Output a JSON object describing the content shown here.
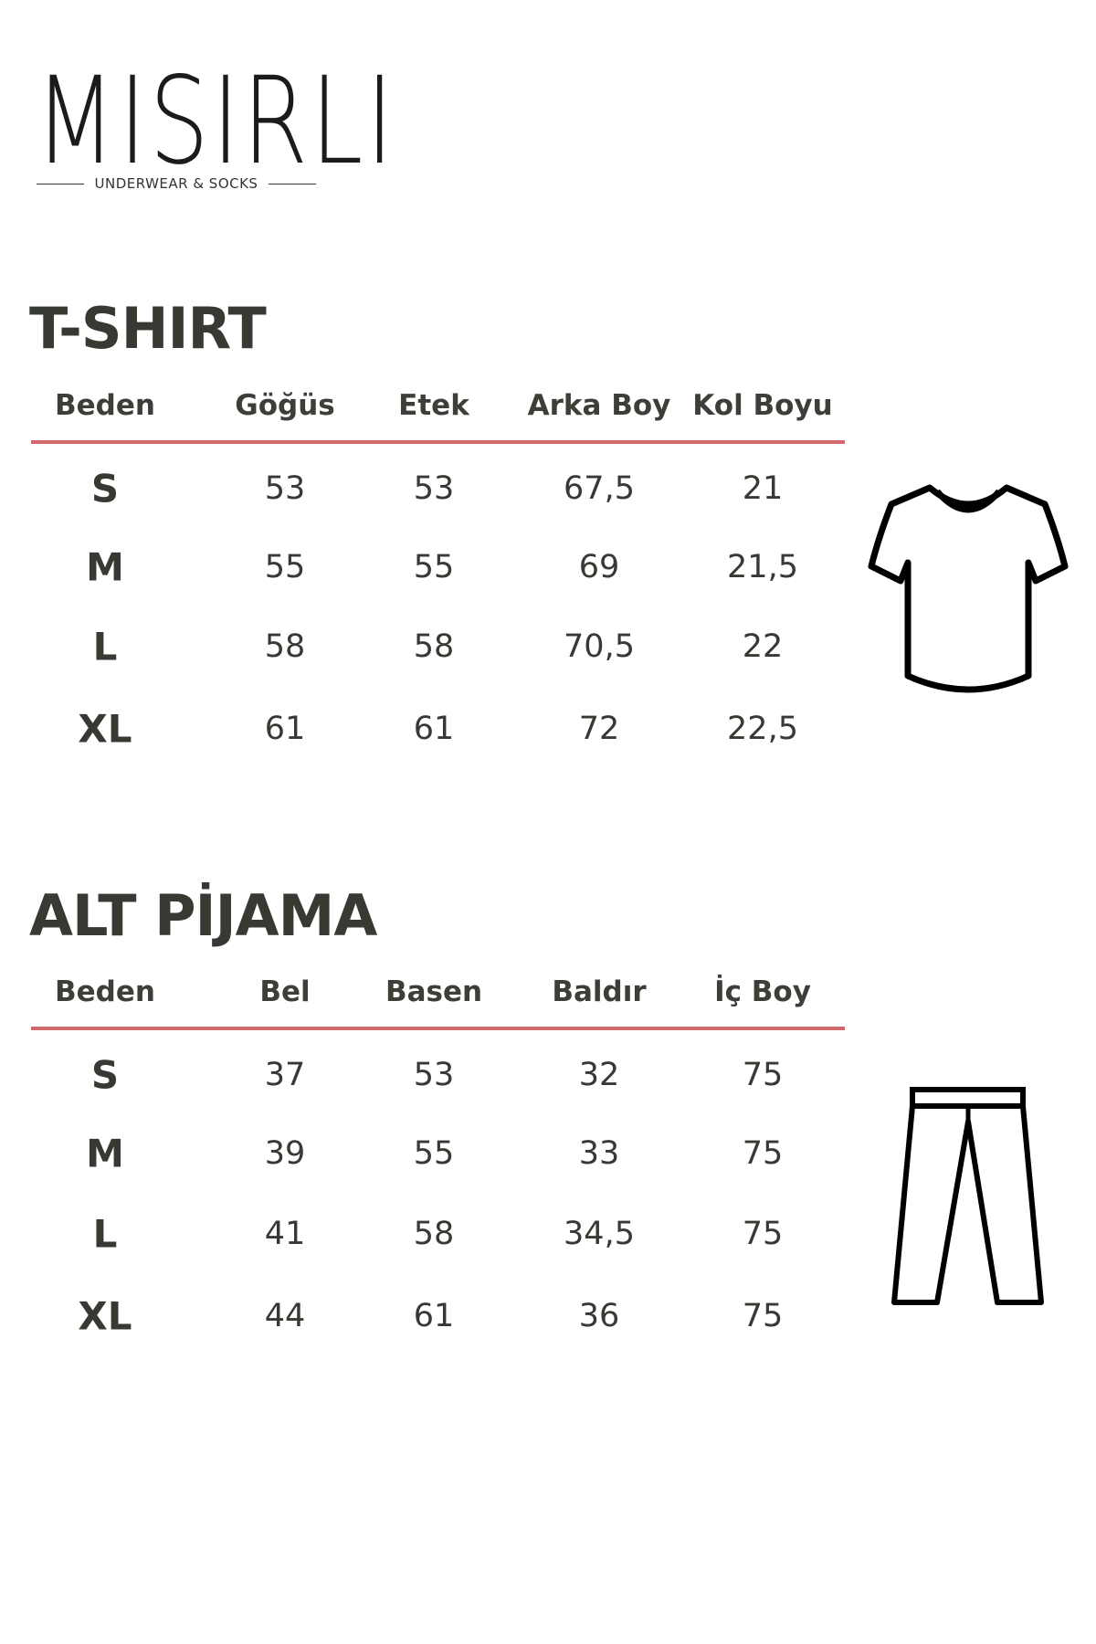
{
  "brand": {
    "name": "MISIRLI",
    "tagline": "UNDERWEAR & SOCKS"
  },
  "accent_color": "#d06a6a",
  "tables": [
    {
      "title": "T-SHIRT",
      "icon": "tshirt-icon",
      "headers": [
        "Beden",
        "Göğüs",
        "Etek",
        "Arka Boy",
        "Kol Boyu"
      ],
      "rows": [
        [
          "S",
          "53",
          "53",
          "67,5",
          "21"
        ],
        [
          "M",
          "55",
          "55",
          "69",
          "21,5"
        ],
        [
          "L",
          "58",
          "58",
          "70,5",
          "22"
        ],
        [
          "XL",
          "61",
          "61",
          "72",
          "22,5"
        ]
      ]
    },
    {
      "title": "ALT PİJAMA",
      "icon": "pants-icon",
      "headers": [
        "Beden",
        "Bel",
        "Basen",
        "Baldır",
        "İç Boy"
      ],
      "rows": [
        [
          "S",
          "37",
          "53",
          "32",
          "75"
        ],
        [
          "M",
          "39",
          "55",
          "33",
          "75"
        ],
        [
          "L",
          "41",
          "58",
          "34,5",
          "75"
        ],
        [
          "XL",
          "44",
          "61",
          "36",
          "75"
        ]
      ]
    }
  ]
}
